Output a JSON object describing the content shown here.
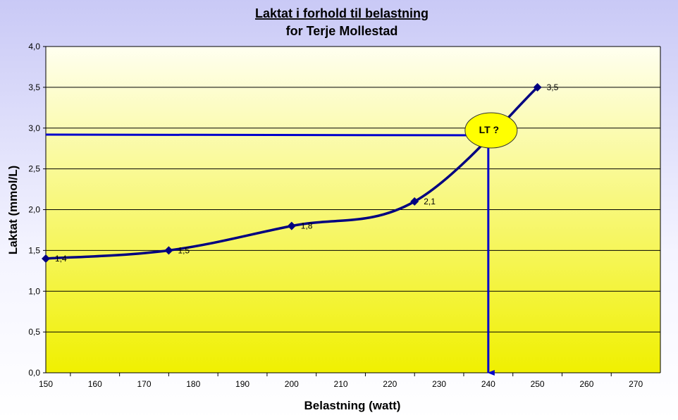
{
  "chart_data": {
    "type": "line",
    "title": "Laktat i forhold til belastning",
    "subtitle": "for Terje Mollestad",
    "xlabel": "Belastning (watt)",
    "ylabel": "Laktat (mmol/L)",
    "xlim": [
      150,
      275
    ],
    "ylim": [
      0,
      4
    ],
    "x_ticks": [
      "150",
      "160",
      "170",
      "180",
      "190",
      "200",
      "210",
      "220",
      "230",
      "240",
      "250",
      "260",
      "270"
    ],
    "y_ticks": [
      "0,0",
      "0,5",
      "1,0",
      "1,5",
      "2,0",
      "2,5",
      "3,0",
      "3,5",
      "4,0"
    ],
    "grid": true,
    "series": [
      {
        "x": [
          150,
          175,
          200,
          225,
          250
        ],
        "y": [
          1.4,
          1.5,
          1.8,
          2.1,
          3.5
        ],
        "labels": [
          "1,4",
          "1,5",
          "1,8",
          "2,1",
          "3,5"
        ]
      }
    ],
    "annotation": {
      "text": "LT ?",
      "x": 240,
      "y": 2.92
    },
    "colors": {
      "line": "#000080",
      "marker": "#000080",
      "threshold_line": "#0000cc",
      "callout_fill": "#ffff00",
      "plot_top": "#fffff0",
      "plot_bottom": "#f0f000"
    }
  }
}
